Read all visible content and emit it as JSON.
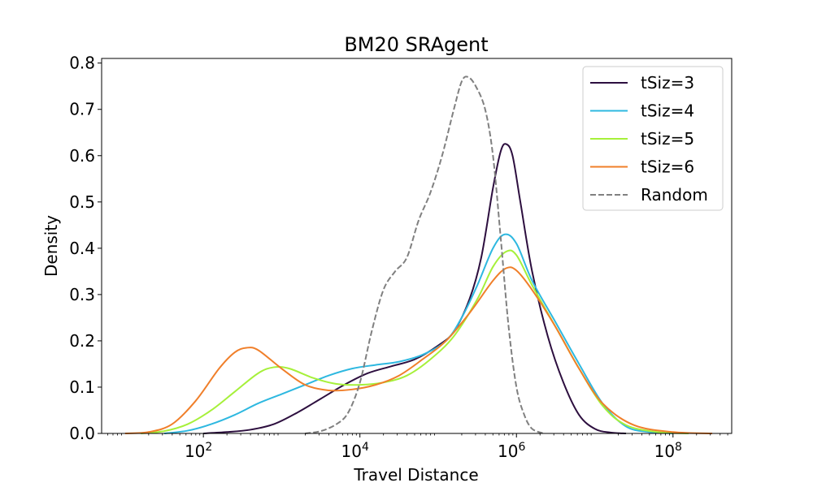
{
  "chart_data": {
    "type": "line",
    "title": "BM20 SRAgent",
    "xlabel": "Travel Distance",
    "ylabel": "Density",
    "xscale": "log",
    "xlim_log10": [
      0.7,
      8.75
    ],
    "ylim": [
      0,
      0.81
    ],
    "x_ticks": [
      {
        "log10": 2,
        "base": "10",
        "exp": "2"
      },
      {
        "log10": 4,
        "base": "10",
        "exp": "4"
      },
      {
        "log10": 6,
        "base": "10",
        "exp": "6"
      },
      {
        "log10": 8,
        "base": "10",
        "exp": "8"
      }
    ],
    "y_ticks": [
      {
        "value": 0.0,
        "label": "0.0"
      },
      {
        "value": 0.1,
        "label": "0.1"
      },
      {
        "value": 0.2,
        "label": "0.2"
      },
      {
        "value": 0.3,
        "label": "0.3"
      },
      {
        "value": 0.4,
        "label": "0.4"
      },
      {
        "value": 0.5,
        "label": "0.5"
      },
      {
        "value": 0.6,
        "label": "0.6"
      },
      {
        "value": 0.7,
        "label": "0.7"
      },
      {
        "value": 0.8,
        "label": "0.8"
      }
    ],
    "legend_position": "top-right",
    "series": [
      {
        "name": "tSiz=3",
        "color": "#2d0f3f",
        "dash": "solid",
        "points": [
          [
            2.0,
            0.0
          ],
          [
            2.3,
            0.003
          ],
          [
            2.6,
            0.008
          ],
          [
            2.9,
            0.02
          ],
          [
            3.2,
            0.045
          ],
          [
            3.5,
            0.075
          ],
          [
            3.8,
            0.105
          ],
          [
            4.1,
            0.13
          ],
          [
            4.4,
            0.145
          ],
          [
            4.7,
            0.16
          ],
          [
            5.0,
            0.19
          ],
          [
            5.2,
            0.22
          ],
          [
            5.4,
            0.29
          ],
          [
            5.55,
            0.38
          ],
          [
            5.7,
            0.53
          ],
          [
            5.8,
            0.61
          ],
          [
            5.87,
            0.625
          ],
          [
            5.95,
            0.6
          ],
          [
            6.05,
            0.5
          ],
          [
            6.2,
            0.35
          ],
          [
            6.4,
            0.21
          ],
          [
            6.6,
            0.11
          ],
          [
            6.8,
            0.04
          ],
          [
            7.0,
            0.01
          ],
          [
            7.2,
            0.002
          ],
          [
            7.4,
            0.0
          ]
        ]
      },
      {
        "name": "tSiz=4",
        "color": "#2eb8e0",
        "dash": "solid",
        "points": [
          [
            1.5,
            0.0
          ],
          [
            1.8,
            0.006
          ],
          [
            2.1,
            0.02
          ],
          [
            2.4,
            0.04
          ],
          [
            2.7,
            0.065
          ],
          [
            3.0,
            0.085
          ],
          [
            3.3,
            0.105
          ],
          [
            3.6,
            0.125
          ],
          [
            3.9,
            0.14
          ],
          [
            4.2,
            0.148
          ],
          [
            4.5,
            0.155
          ],
          [
            4.8,
            0.17
          ],
          [
            5.1,
            0.2
          ],
          [
            5.3,
            0.25
          ],
          [
            5.5,
            0.32
          ],
          [
            5.7,
            0.4
          ],
          [
            5.85,
            0.43
          ],
          [
            6.0,
            0.41
          ],
          [
            6.2,
            0.33
          ],
          [
            6.5,
            0.24
          ],
          [
            6.8,
            0.15
          ],
          [
            7.1,
            0.065
          ],
          [
            7.4,
            0.015
          ],
          [
            7.7,
            0.003
          ],
          [
            8.0,
            0.0
          ]
        ]
      },
      {
        "name": "tSiz=5",
        "color": "#a6f03a",
        "dash": "solid",
        "points": [
          [
            1.2,
            0.0
          ],
          [
            1.5,
            0.005
          ],
          [
            1.8,
            0.02
          ],
          [
            2.1,
            0.05
          ],
          [
            2.4,
            0.09
          ],
          [
            2.7,
            0.13
          ],
          [
            2.9,
            0.143
          ],
          [
            3.1,
            0.14
          ],
          [
            3.4,
            0.12
          ],
          [
            3.7,
            0.107
          ],
          [
            4.0,
            0.105
          ],
          [
            4.3,
            0.11
          ],
          [
            4.6,
            0.125
          ],
          [
            4.9,
            0.16
          ],
          [
            5.2,
            0.21
          ],
          [
            5.5,
            0.29
          ],
          [
            5.7,
            0.36
          ],
          [
            5.87,
            0.393
          ],
          [
            6.0,
            0.385
          ],
          [
            6.2,
            0.32
          ],
          [
            6.5,
            0.23
          ],
          [
            6.8,
            0.14
          ],
          [
            7.1,
            0.06
          ],
          [
            7.4,
            0.018
          ],
          [
            7.8,
            0.003
          ],
          [
            8.2,
            0.0
          ]
        ]
      },
      {
        "name": "tSiz=6",
        "color": "#f07f2a",
        "dash": "solid",
        "points": [
          [
            1.0,
            0.0
          ],
          [
            1.3,
            0.003
          ],
          [
            1.6,
            0.02
          ],
          [
            1.9,
            0.07
          ],
          [
            2.2,
            0.14
          ],
          [
            2.4,
            0.175
          ],
          [
            2.55,
            0.185
          ],
          [
            2.7,
            0.18
          ],
          [
            3.0,
            0.14
          ],
          [
            3.3,
            0.105
          ],
          [
            3.6,
            0.093
          ],
          [
            3.9,
            0.095
          ],
          [
            4.2,
            0.105
          ],
          [
            4.5,
            0.125
          ],
          [
            4.8,
            0.16
          ],
          [
            5.1,
            0.2
          ],
          [
            5.4,
            0.26
          ],
          [
            5.7,
            0.33
          ],
          [
            5.87,
            0.357
          ],
          [
            6.0,
            0.352
          ],
          [
            6.2,
            0.31
          ],
          [
            6.5,
            0.23
          ],
          [
            6.8,
            0.14
          ],
          [
            7.1,
            0.065
          ],
          [
            7.5,
            0.018
          ],
          [
            8.0,
            0.003
          ],
          [
            8.5,
            0.0
          ]
        ]
      },
      {
        "name": "Random",
        "color": "#808080",
        "dash": "dashed",
        "points": [
          [
            3.3,
            0.0
          ],
          [
            3.5,
            0.005
          ],
          [
            3.7,
            0.02
          ],
          [
            3.85,
            0.045
          ],
          [
            4.0,
            0.11
          ],
          [
            4.15,
            0.22
          ],
          [
            4.3,
            0.31
          ],
          [
            4.45,
            0.35
          ],
          [
            4.6,
            0.38
          ],
          [
            4.75,
            0.46
          ],
          [
            4.9,
            0.52
          ],
          [
            5.05,
            0.6
          ],
          [
            5.2,
            0.7
          ],
          [
            5.3,
            0.76
          ],
          [
            5.38,
            0.77
          ],
          [
            5.48,
            0.75
          ],
          [
            5.6,
            0.7
          ],
          [
            5.7,
            0.6
          ],
          [
            5.8,
            0.42
          ],
          [
            5.9,
            0.23
          ],
          [
            6.0,
            0.1
          ],
          [
            6.1,
            0.04
          ],
          [
            6.2,
            0.01
          ],
          [
            6.35,
            0.0
          ]
        ]
      }
    ]
  }
}
